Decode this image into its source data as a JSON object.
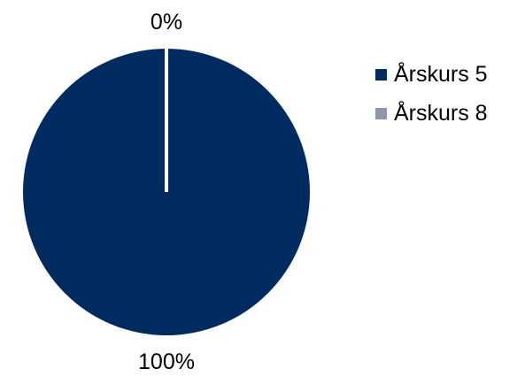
{
  "chart_data": {
    "type": "pie",
    "title": "",
    "series": [
      {
        "name": "Årskurs 5",
        "value": 100,
        "label": "100%",
        "color": "#002B61"
      },
      {
        "name": "Årskurs 8",
        "value": 0,
        "label": "0%",
        "color": "#8E96B0"
      }
    ],
    "legend_placement": "right",
    "background": "#FFFFFF"
  }
}
